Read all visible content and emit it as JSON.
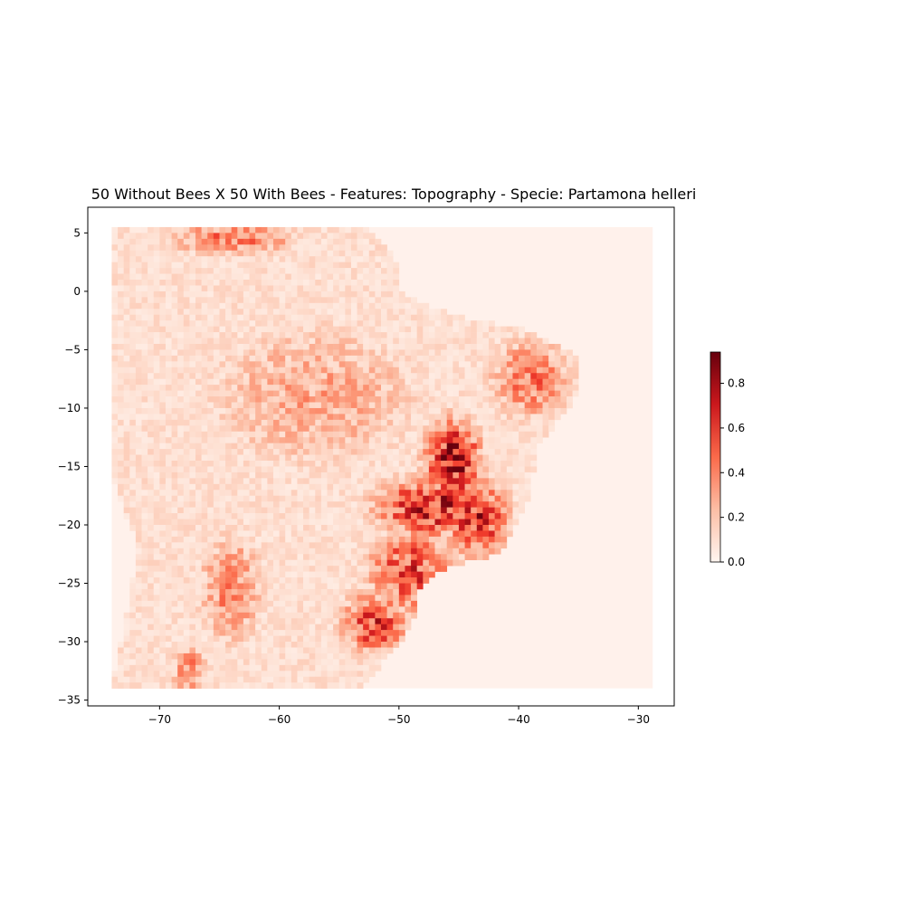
{
  "chart_data": {
    "type": "heatmap",
    "title": "50 Without Bees X 50 With Bees - Features: Topography - Specie: Partamona helleri",
    "xlabel": "",
    "ylabel": "",
    "xlim": [
      -76,
      -27
    ],
    "ylim": [
      -35.5,
      7.2
    ],
    "x_ticks": [
      -70,
      -60,
      -50,
      -40,
      -30
    ],
    "x_tick_labels": [
      "−70",
      "−60",
      "−50",
      "−40",
      "−30"
    ],
    "y_ticks": [
      5,
      0,
      -5,
      -10,
      -15,
      -20,
      -25,
      -30,
      -35
    ],
    "y_tick_labels": [
      "5",
      "0",
      "−5",
      "−10",
      "−15",
      "−20",
      "−25",
      "−30",
      "−35"
    ],
    "colormap": "Reds",
    "colors": {
      "low": "#fff5f0",
      "mid": "#fb6a4a",
      "high": "#67000d"
    },
    "colorbar": {
      "range": [
        0,
        0.94
      ],
      "ticks": [
        0.0,
        0.2,
        0.4,
        0.6,
        0.8
      ],
      "tick_labels": [
        "0.0",
        "0.2",
        "0.4",
        "0.6",
        "0.8"
      ]
    },
    "grid": false,
    "raster_extent": {
      "lon": [
        -74.0,
        -28.8
      ],
      "lat": [
        -34.0,
        5.5
      ]
    },
    "land_outline": [
      [
        -74.0,
        5.5
      ],
      [
        -52.5,
        5.5
      ],
      [
        -51.0,
        4.0
      ],
      [
        -50.0,
        2.0
      ],
      [
        -50.0,
        0.0
      ],
      [
        -48.0,
        -1.0
      ],
      [
        -44.0,
        -2.5
      ],
      [
        -40.0,
        -3.0
      ],
      [
        -37.0,
        -4.5
      ],
      [
        -35.2,
        -5.5
      ],
      [
        -34.9,
        -8.0
      ],
      [
        -35.5,
        -9.5
      ],
      [
        -37.0,
        -11.5
      ],
      [
        -38.5,
        -13.5
      ],
      [
        -39.0,
        -17.5
      ],
      [
        -40.5,
        -20.5
      ],
      [
        -41.5,
        -22.5
      ],
      [
        -44.5,
        -23.2
      ],
      [
        -47.0,
        -24.0
      ],
      [
        -48.5,
        -26.0
      ],
      [
        -48.8,
        -28.5
      ],
      [
        -50.0,
        -30.5
      ],
      [
        -51.5,
        -32.0
      ],
      [
        -53.0,
        -34.0
      ],
      [
        -74.0,
        -34.0
      ],
      [
        -72.5,
        -26.0
      ],
      [
        -71.8,
        -22.0
      ],
      [
        -72.5,
        -20.0
      ],
      [
        -74.0,
        -16.0
      ]
    ],
    "hotspots": [
      {
        "lon": -45.5,
        "lat": -14.5,
        "value": 0.85,
        "spread_lon": 1.6,
        "spread_lat": 2.4
      },
      {
        "lon": -47.0,
        "lat": -18.5,
        "value": 0.72,
        "spread_lon": 3.5,
        "spread_lat": 1.8
      },
      {
        "lon": -43.5,
        "lat": -19.5,
        "value": 0.65,
        "spread_lon": 2.0,
        "spread_lat": 2.4
      },
      {
        "lon": -49.0,
        "lat": -24.0,
        "value": 0.6,
        "spread_lon": 2.5,
        "spread_lat": 2.5
      },
      {
        "lon": -52.0,
        "lat": -28.5,
        "value": 0.6,
        "spread_lon": 2.0,
        "spread_lat": 2.0
      },
      {
        "lon": -39.0,
        "lat": -7.5,
        "value": 0.45,
        "spread_lon": 2.5,
        "spread_lat": 2.5
      },
      {
        "lon": -64.0,
        "lat": -25.5,
        "value": 0.4,
        "spread_lon": 2.0,
        "spread_lat": 3.5
      },
      {
        "lon": -67.5,
        "lat": -32.5,
        "value": 0.45,
        "spread_lon": 1.0,
        "spread_lat": 1.5
      },
      {
        "lon": -64.0,
        "lat": 4.5,
        "value": 0.45,
        "spread_lon": 4.0,
        "spread_lat": 1.0
      },
      {
        "lon": -57.0,
        "lat": -9.0,
        "value": 0.3,
        "spread_lon": 7.0,
        "spread_lat": 5.0
      }
    ],
    "background_value": 0.12
  }
}
